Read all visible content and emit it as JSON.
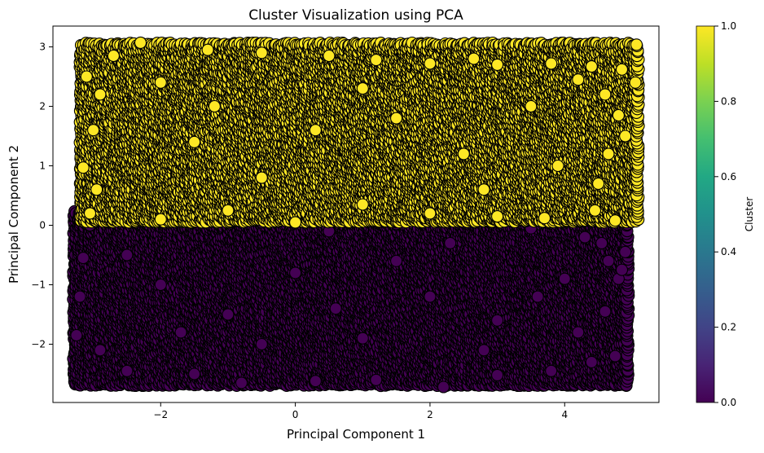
{
  "chart_data": {
    "type": "scatter",
    "title": "Cluster Visualization using PCA",
    "xlabel": "Principal Component 1",
    "ylabel": "Principal Component 2",
    "xlim": [
      -3.6,
      5.4
    ],
    "ylim": [
      -2.98,
      3.35
    ],
    "xticks": [
      -2,
      0,
      2,
      4
    ],
    "xtick_labels": [
      "−2",
      "0",
      "2",
      "4"
    ],
    "yticks": [
      -2,
      -1,
      0,
      1,
      2,
      3
    ],
    "ytick_labels": [
      "−2",
      "−1",
      "0",
      "1",
      "2",
      "3"
    ],
    "grid": false,
    "legend": "none",
    "colorbar": {
      "label": "Cluster",
      "range": [
        0,
        1
      ],
      "ticks": [
        0,
        0.2,
        0.4,
        0.6,
        0.8,
        1.0
      ],
      "tick_labels": [
        "0.0",
        "0.2",
        "0.4",
        "0.6",
        "0.8",
        "1.0"
      ],
      "colormap": "viridis"
    },
    "marker_edge_color": "#000000",
    "series": [
      {
        "cluster": 1,
        "color": "#fde725",
        "x_range": [
          -3.2,
          5.1
        ],
        "y_range": [
          0.05,
          3.07
        ],
        "points": [
          [
            -2.3,
            3.07
          ],
          [
            2.65,
            2.8
          ],
          [
            5.05,
            2.4
          ],
          [
            4.85,
            2.62
          ],
          [
            4.4,
            2.67
          ],
          [
            -3.1,
            2.5
          ],
          [
            -3.15,
            0.97
          ],
          [
            -3.05,
            0.2
          ],
          [
            4.9,
            1.5
          ],
          [
            4.75,
            0.08
          ],
          [
            4.45,
            0.25
          ],
          [
            3.7,
            0.12
          ],
          [
            -0.5,
            2.9
          ],
          [
            0.5,
            2.85
          ],
          [
            1.2,
            2.78
          ],
          [
            2.0,
            2.72
          ],
          [
            3.0,
            2.7
          ],
          [
            3.8,
            2.72
          ],
          [
            -1.3,
            2.95
          ],
          [
            -2.7,
            2.85
          ],
          [
            4.2,
            2.45
          ],
          [
            4.6,
            2.2
          ],
          [
            4.8,
            1.85
          ],
          [
            4.65,
            1.2
          ],
          [
            4.5,
            0.7
          ],
          [
            -2.9,
            2.2
          ],
          [
            -3.0,
            1.6
          ],
          [
            -2.95,
            0.6
          ],
          [
            -2.0,
            0.1
          ],
          [
            -1.0,
            0.25
          ],
          [
            0.0,
            0.05
          ],
          [
            1.0,
            0.35
          ],
          [
            2.0,
            0.2
          ],
          [
            3.0,
            0.15
          ],
          [
            0.3,
            1.6
          ],
          [
            1.5,
            1.8
          ],
          [
            2.5,
            1.2
          ],
          [
            -1.5,
            1.4
          ],
          [
            -0.5,
            0.8
          ],
          [
            3.5,
            2.0
          ],
          [
            1.0,
            2.3
          ],
          [
            -2.0,
            2.4
          ],
          [
            2.8,
            0.6
          ],
          [
            -1.2,
            2.0
          ],
          [
            3.9,
            1.0
          ]
        ]
      },
      {
        "cluster": 0,
        "color": "#440154",
        "x_range": [
          -3.3,
          4.95
        ],
        "y_range": [
          -2.7,
          0.25
        ],
        "points": [
          [
            -3.25,
            -1.85
          ],
          [
            -3.2,
            -1.2
          ],
          [
            -3.15,
            -0.55
          ],
          [
            -3.05,
            0.0
          ],
          [
            -2.9,
            -2.1
          ],
          [
            -2.5,
            -2.45
          ],
          [
            -1.5,
            -2.5
          ],
          [
            -0.8,
            -2.65
          ],
          [
            0.3,
            -2.62
          ],
          [
            1.2,
            -2.6
          ],
          [
            2.2,
            -2.72
          ],
          [
            3.0,
            -2.52
          ],
          [
            3.8,
            -2.45
          ],
          [
            4.4,
            -2.3
          ],
          [
            4.75,
            -2.2
          ],
          [
            4.9,
            -0.45
          ],
          [
            4.8,
            -0.9
          ],
          [
            4.85,
            -0.75
          ],
          [
            4.6,
            -1.45
          ],
          [
            4.65,
            -0.6
          ],
          [
            4.55,
            -0.3
          ],
          [
            4.3,
            -0.2
          ],
          [
            3.5,
            -0.05
          ],
          [
            2.5,
            0.05
          ],
          [
            1.5,
            0.02
          ],
          [
            0.5,
            -0.1
          ],
          [
            -0.5,
            0.05
          ],
          [
            -1.5,
            0.15
          ],
          [
            -2.3,
            0.2
          ],
          [
            -2.0,
            -1.0
          ],
          [
            -1.0,
            -1.5
          ],
          [
            0.0,
            -0.8
          ],
          [
            1.0,
            -1.9
          ],
          [
            2.0,
            -1.2
          ],
          [
            3.0,
            -1.6
          ],
          [
            4.0,
            -0.9
          ],
          [
            -2.5,
            -0.5
          ],
          [
            -0.5,
            -2.0
          ],
          [
            1.5,
            -0.6
          ],
          [
            2.8,
            -2.1
          ],
          [
            3.6,
            -1.2
          ],
          [
            0.6,
            -1.4
          ],
          [
            -1.7,
            -1.8
          ],
          [
            2.3,
            -0.3
          ],
          [
            4.2,
            -1.8
          ]
        ]
      }
    ]
  }
}
